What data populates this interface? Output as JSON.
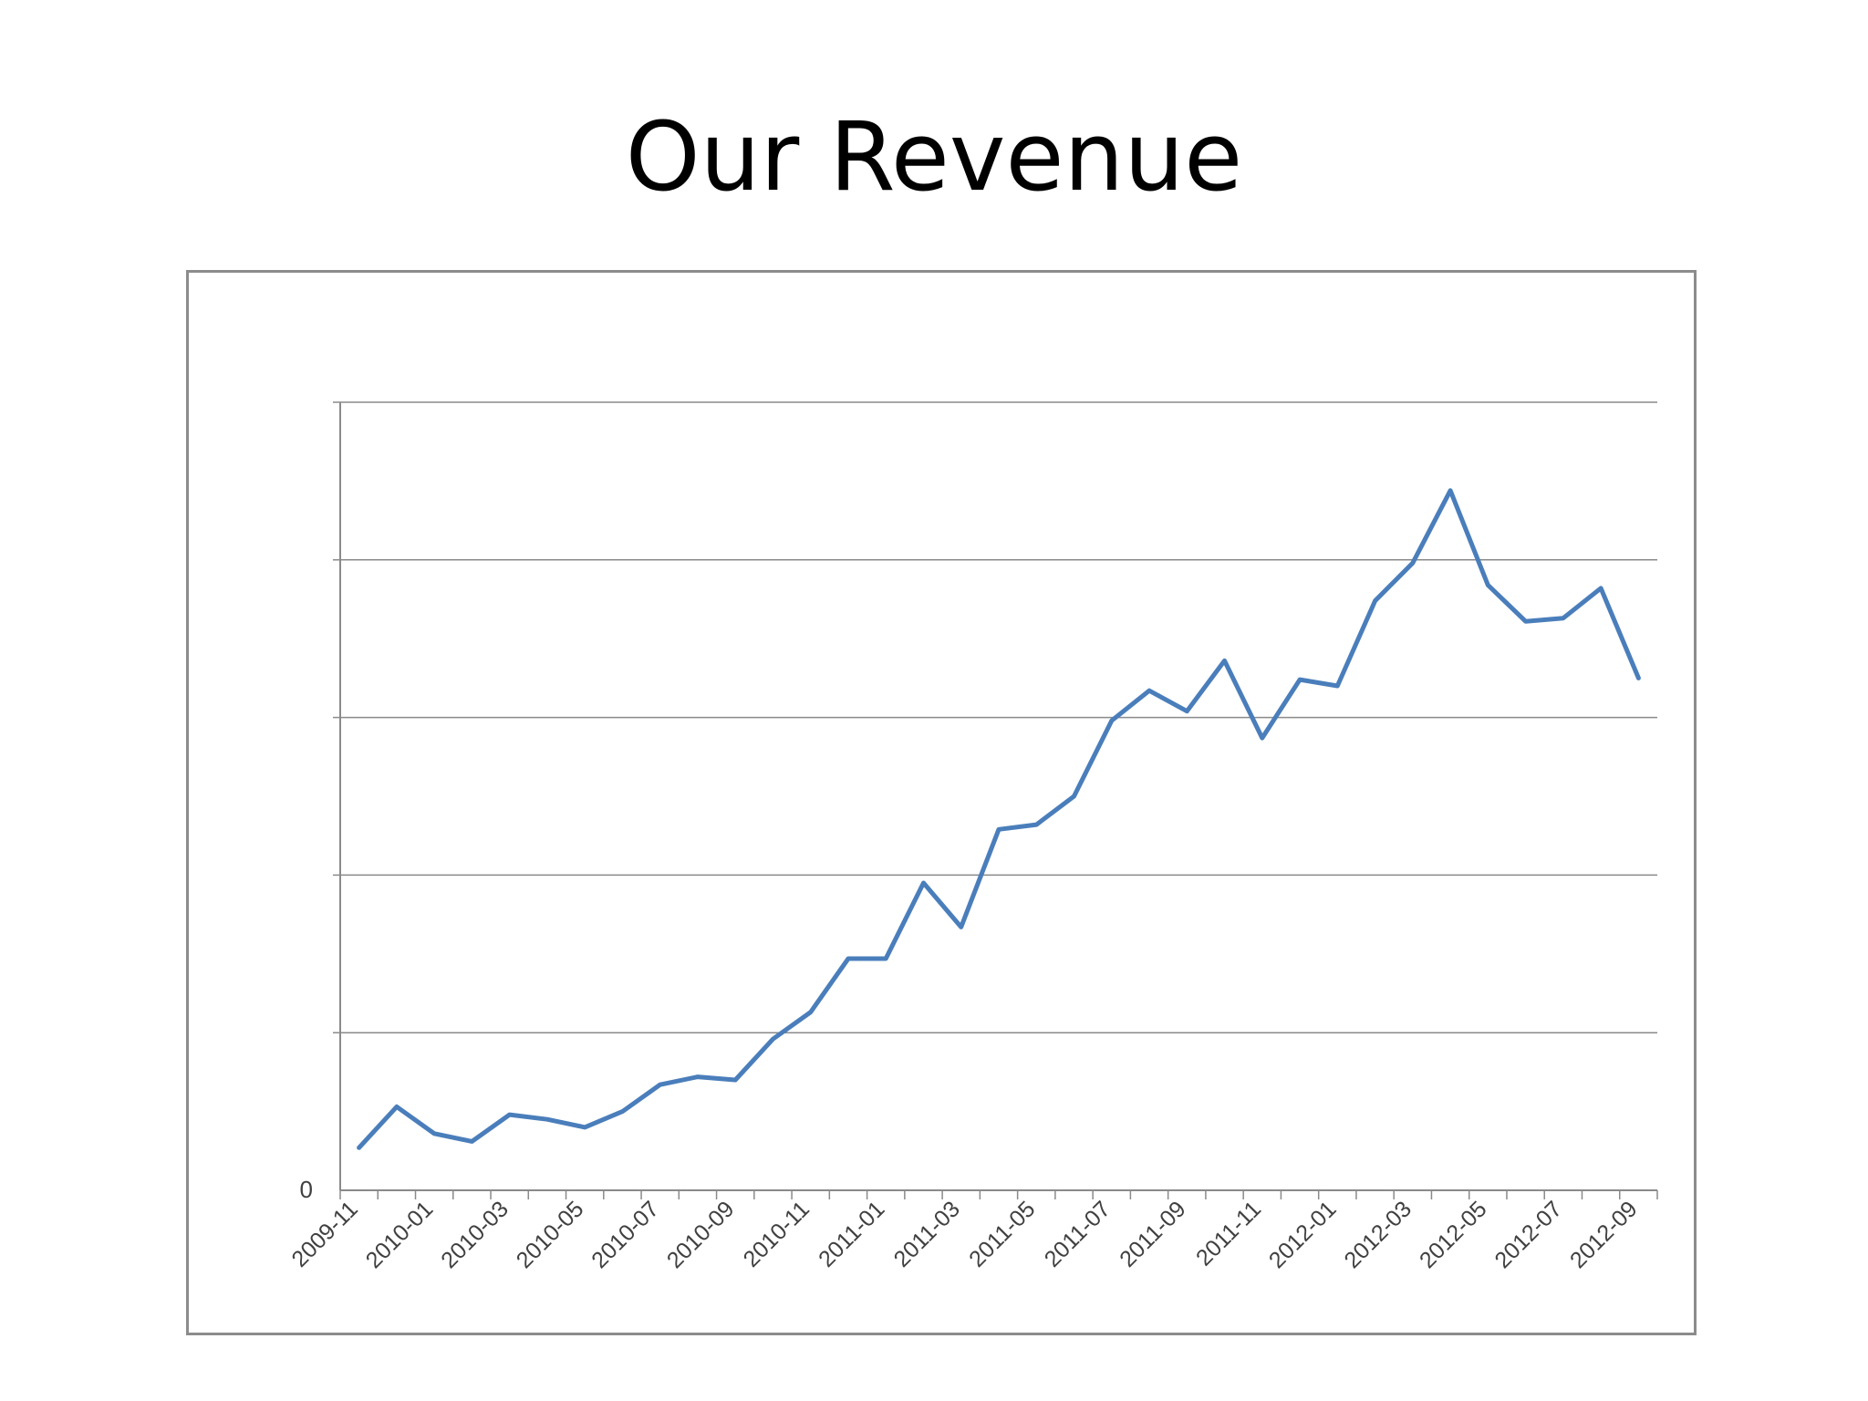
{
  "slide": {
    "title": "Our Revenue"
  },
  "chart_data": {
    "type": "line",
    "title": "Our Revenue",
    "xlabel": "",
    "ylabel": "",
    "y_tick_labels": [
      "0"
    ],
    "ylim": [
      0,
      5
    ],
    "grid": true,
    "gridlines_y": [
      1,
      2,
      3,
      4,
      5
    ],
    "x_tick_labels": [
      "2009-11",
      "2010-01",
      "2010-03",
      "2010-05",
      "2010-07",
      "2010-09",
      "2010-11",
      "2011-01",
      "2011-03",
      "2011-05",
      "2011-07",
      "2011-09",
      "2011-11",
      "2012-01",
      "2012-03",
      "2012-05",
      "2012-07",
      "2012-09"
    ],
    "line_color": "#4a7ebb",
    "series": [
      {
        "x": [
          "2009-11",
          "2009-12",
          "2010-01",
          "2010-02",
          "2010-03",
          "2010-04",
          "2010-05",
          "2010-06",
          "2010-07",
          "2010-08",
          "2010-09",
          "2010-10",
          "2010-11",
          "2010-12",
          "2011-01",
          "2011-02",
          "2011-03",
          "2011-04",
          "2011-05",
          "2011-06",
          "2011-07",
          "2011-08",
          "2011-09",
          "2011-10",
          "2011-11",
          "2011-12",
          "2012-01",
          "2012-02",
          "2012-03",
          "2012-04",
          "2012-05",
          "2012-06",
          "2012-07",
          "2012-08",
          "2012-09"
        ],
        "values": [
          0.27,
          0.53,
          0.36,
          0.31,
          0.48,
          0.45,
          0.4,
          0.5,
          0.67,
          0.72,
          0.7,
          0.96,
          1.13,
          1.47,
          1.47,
          1.95,
          1.67,
          2.29,
          2.32,
          2.5,
          2.98,
          3.17,
          3.04,
          3.36,
          2.87,
          3.24,
          3.2,
          3.74,
          3.98,
          4.44,
          3.84,
          3.61,
          3.63,
          3.82,
          3.25
        ]
      }
    ]
  }
}
